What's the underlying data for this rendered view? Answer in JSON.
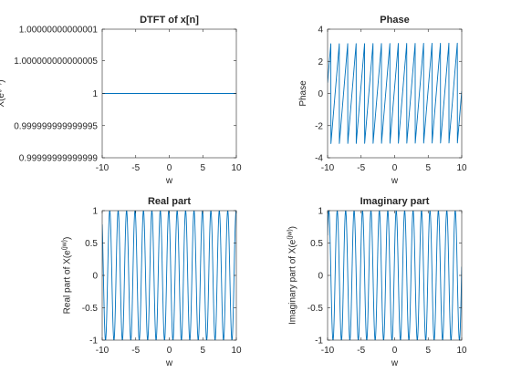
{
  "figure": {
    "line_color": "#0072BD",
    "axes_color": "#262626",
    "background": "#ffffff"
  },
  "chart_data": [
    {
      "type": "line",
      "title": "DTFT of x[n]",
      "xlabel": "w",
      "ylabel": "X(e^{jw})",
      "ylabel_parts": {
        "base": "X(e",
        "sup": "(jw)",
        "close": ")"
      },
      "xlim": [
        -10,
        10
      ],
      "ylim": [
        0.99999999999999,
        1.00000000000001
      ],
      "xticks": [
        -10,
        -5,
        0,
        5,
        10
      ],
      "xtick_labels": [
        "-10",
        "-5",
        "0",
        "5",
        "10"
      ],
      "yticks": [
        0.99999999999999,
        0.999999999999995,
        1,
        1.000000000000005,
        1.00000000000001
      ],
      "ytick_labels": [
        "0.99999999999999",
        "0.999999999999995",
        "1",
        "1.000000000000005",
        "1.00000000000001"
      ],
      "grid": false,
      "series": [
        {
          "kind": "constant",
          "value": 1
        }
      ]
    },
    {
      "type": "line",
      "title": "Phase",
      "xlabel": "w",
      "ylabel": "Phase",
      "xlim": [
        -10,
        10
      ],
      "ylim": [
        -4,
        4
      ],
      "xticks": [
        -10,
        -5,
        0,
        5,
        10
      ],
      "xtick_labels": [
        "-10",
        "-5",
        "0",
        "5",
        "10"
      ],
      "yticks": [
        -4,
        -2,
        0,
        2,
        4
      ],
      "ytick_labels": [
        "-4",
        "-2",
        "0",
        "2",
        "4"
      ],
      "grid": false,
      "series": [
        {
          "kind": "wrapped_phase",
          "frequency": 5,
          "offset": 0.4
        }
      ]
    },
    {
      "type": "line",
      "title": "Real part",
      "xlabel": "w",
      "ylabel": "Real part of X(e^{jw})",
      "ylabel_parts": {
        "base": "Real part of X(e",
        "sup": "(jw)",
        "close": ")"
      },
      "xlim": [
        -10,
        10
      ],
      "ylim": [
        -1,
        1
      ],
      "xticks": [
        -10,
        -5,
        0,
        5,
        10
      ],
      "xtick_labels": [
        "-10",
        "-5",
        "0",
        "5",
        "10"
      ],
      "yticks": [
        -1,
        -0.5,
        0,
        0.5,
        1
      ],
      "ytick_labels": [
        "-1",
        "-0.5",
        "0",
        "0.5",
        "1"
      ],
      "grid": false,
      "series": [
        {
          "kind": "cos",
          "frequency": 5,
          "offset": 0.4
        }
      ]
    },
    {
      "type": "line",
      "title": "Imaginary part",
      "xlabel": "w",
      "ylabel": "Imaginary part of X(e^{jw})",
      "ylabel_parts": {
        "base": "Imaginary part of X(e",
        "sup": "(jw)",
        "close": ")"
      },
      "xlim": [
        -10,
        10
      ],
      "ylim": [
        -1,
        1
      ],
      "xticks": [
        -10,
        -5,
        0,
        5,
        10
      ],
      "xtick_labels": [
        "-10",
        "-5",
        "0",
        "5",
        "10"
      ],
      "yticks": [
        -1,
        -0.5,
        0,
        0.5,
        1
      ],
      "ytick_labels": [
        "-1",
        "-0.5",
        "0",
        "0.5",
        "1"
      ],
      "grid": false,
      "series": [
        {
          "kind": "sin",
          "frequency": 5,
          "offset": 0.4
        }
      ]
    }
  ]
}
